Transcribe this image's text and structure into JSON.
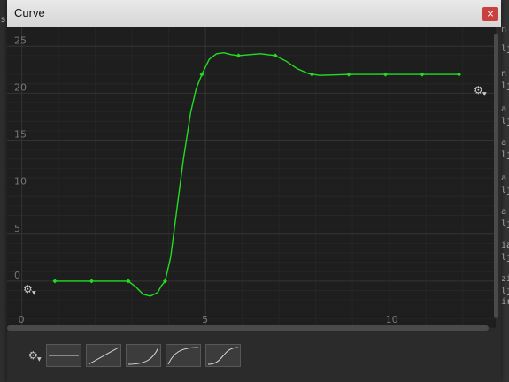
{
  "window": {
    "title": "Curve",
    "close_label": "×"
  },
  "background_letters": [
    "n",
    "lj",
    "n",
    "lj",
    "a",
    "lj",
    "a",
    "lj",
    "a",
    "lj",
    "a",
    "lj",
    "ia",
    "lj",
    "zi",
    "lj",
    "ir"
  ],
  "background_left_letter": "s",
  "colors": {
    "curve": "#22dd22",
    "grid": "#333333",
    "plot_bg": "#1e1e1e"
  },
  "chart_data": {
    "type": "line",
    "x_ticks": [
      0,
      5,
      10
    ],
    "y_ticks": [
      0,
      5,
      10,
      15,
      20,
      25
    ],
    "tick_labels_x": [
      "0",
      "5",
      "10"
    ],
    "tick_labels_y": [
      "0",
      "5",
      "10",
      "15",
      "20",
      "25"
    ],
    "xlim": [
      -0.4,
      12.9
    ],
    "ylim": [
      -5,
      27
    ],
    "keyframes": [
      {
        "x": 0.9,
        "y": 0
      },
      {
        "x": 1.9,
        "y": 0
      },
      {
        "x": 2.9,
        "y": 0
      },
      {
        "x": 3.9,
        "y": 0
      },
      {
        "x": 4.9,
        "y": 22
      },
      {
        "x": 5.9,
        "y": 24
      },
      {
        "x": 6.9,
        "y": 24
      },
      {
        "x": 7.9,
        "y": 22
      },
      {
        "x": 8.9,
        "y": 22
      },
      {
        "x": 9.9,
        "y": 22
      },
      {
        "x": 10.9,
        "y": 22
      },
      {
        "x": 11.9,
        "y": 22
      }
    ],
    "curve": [
      [
        0.9,
        0
      ],
      [
        2.9,
        0
      ],
      [
        3.1,
        -0.6
      ],
      [
        3.3,
        -1.4
      ],
      [
        3.5,
        -1.6
      ],
      [
        3.7,
        -1.2
      ],
      [
        3.8,
        -0.5
      ],
      [
        3.9,
        0
      ],
      [
        4.05,
        2.5
      ],
      [
        4.2,
        7
      ],
      [
        4.4,
        13
      ],
      [
        4.6,
        18
      ],
      [
        4.75,
        20.5
      ],
      [
        4.9,
        22
      ],
      [
        5.1,
        23.6
      ],
      [
        5.3,
        24.2
      ],
      [
        5.5,
        24.3
      ],
      [
        5.7,
        24.1
      ],
      [
        5.9,
        24
      ],
      [
        6.2,
        24.1
      ],
      [
        6.5,
        24.2
      ],
      [
        6.9,
        24
      ],
      [
        7.2,
        23.4
      ],
      [
        7.5,
        22.6
      ],
      [
        7.8,
        22.1
      ],
      [
        8.1,
        21.9
      ],
      [
        8.5,
        21.95
      ],
      [
        8.9,
        22
      ],
      [
        11.9,
        22
      ]
    ]
  },
  "toolbar": {
    "presets": [
      "constant",
      "linear",
      "ease-in",
      "ease-out",
      "smooth"
    ]
  }
}
